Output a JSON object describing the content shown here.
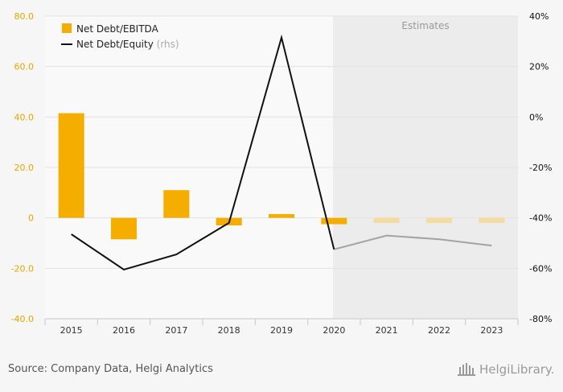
{
  "chart_data": {
    "type": "bar",
    "categories": [
      "2015",
      "2016",
      "2017",
      "2018",
      "2019",
      "2020",
      "2021",
      "2022",
      "2023"
    ],
    "estimate_start_index": 6,
    "estimates_label": "Estimates",
    "series": [
      {
        "name": "Net Debt/EBITDA",
        "type": "bar",
        "axis": "left",
        "values": [
          41.5,
          -8.5,
          11.0,
          -3.0,
          1.5,
          -2.5,
          -2.0,
          -2.0,
          -2.0
        ]
      },
      {
        "name": "Net Debt/Equity",
        "type": "line",
        "axis": "right",
        "name_suffix": "(rhs)",
        "values": [
          -46.5,
          -60.5,
          -54.5,
          -42.0,
          31.5,
          -52.5,
          -47.0,
          -48.5,
          -51.0
        ]
      }
    ],
    "y_left": {
      "ylim": [
        -40,
        80
      ],
      "ticks": [
        80,
        60,
        40,
        20,
        0,
        -20,
        -40
      ],
      "tick_labels": [
        "80.0",
        "60.0",
        "40.0",
        "20.0",
        "0",
        "-20.0",
        "-40.0"
      ]
    },
    "y_right": {
      "ylim": [
        -80,
        40
      ],
      "ticks": [
        40,
        20,
        0,
        -20,
        -40,
        -60,
        -80
      ],
      "tick_labels": [
        "40%",
        "20%",
        "0%",
        "-20%",
        "-40%",
        "-60%",
        "-80%"
      ]
    },
    "grid": true,
    "legend_position": "top-left",
    "colors": {
      "bar": "#f5ad00",
      "bar_estimate": "#f3dc9e",
      "line": "#111111",
      "line_estimate": "#a3a3a3",
      "left_axis_text": "#e8a500",
      "right_axis_text": "#111111",
      "estimate_band": "#ececec",
      "plot_bg": "#f9f9f9"
    }
  },
  "footer": {
    "source": "Source: Company Data, Helgi Analytics",
    "brand": "HelgiLibrary."
  }
}
